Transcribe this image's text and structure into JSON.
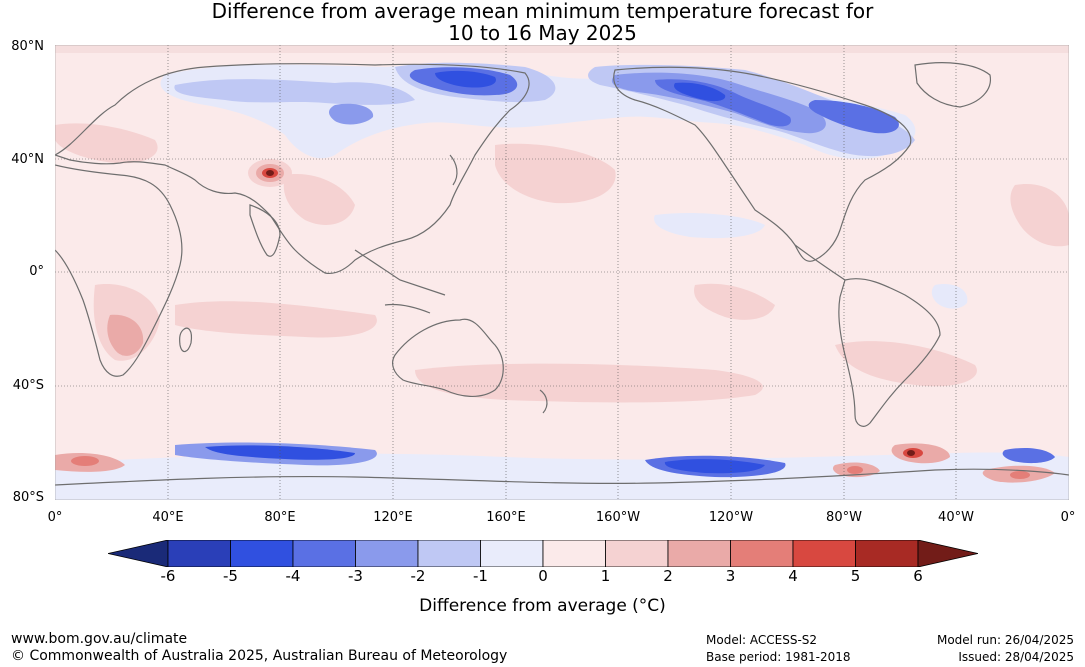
{
  "title_line1": "Difference from average mean minimum temperature forecast for",
  "title_line2": "10 to 16 May 2025",
  "lat_labels": [
    "80°N",
    "40°N",
    "0°",
    "40°S",
    "80°S"
  ],
  "lon_labels": [
    "0°",
    "40°E",
    "80°E",
    "120°E",
    "160°E",
    "160°W",
    "120°W",
    "80°W",
    "40°W",
    "0°"
  ],
  "colorbar": {
    "label": "Difference from average (°C)",
    "ticks": [
      "-6",
      "-5",
      "-4",
      "-3",
      "-2",
      "-1",
      "0",
      "1",
      "2",
      "3",
      "4",
      "5",
      "6"
    ],
    "colors": [
      "#1a2a78",
      "#2a3fb8",
      "#3050e0",
      "#5a70e4",
      "#8a9aec",
      "#bfc8f4",
      "#e9ecfb",
      "#fbeaea",
      "#f5d2d2",
      "#eaaaa8",
      "#e47e78",
      "#d84840",
      "#a82a24",
      "#721c18"
    ]
  },
  "footer": {
    "url": "www.bom.gov.au/climate",
    "copyright": "© Commonwealth of Australia 2025, Australian Bureau of Meteorology",
    "model": "Model: ACCESS-S2",
    "base_period": "Base period: 1981-2018",
    "model_run": "Model run: 26/04/2025",
    "issued": "Issued: 28/04/2025"
  }
}
